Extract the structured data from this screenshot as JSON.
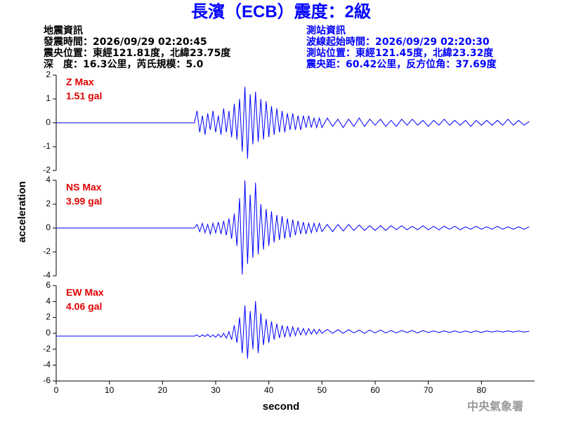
{
  "title": "長濱（ECB）震度：2級",
  "info_left": [
    "地震資訊",
    "發震時間：2026/09/29 02:20:45",
    "震央位置：東經121.81度，北緯23.75度",
    "深　度：16.3公里，芮氏規模：5.0"
  ],
  "info_right": [
    "測站資訊",
    "波線起始時間：2026/09/29 02:20:30",
    "測站位置：東經121.45度，北緯23.32度",
    "震央距：60.42公里，反方位角：37.69度"
  ],
  "xlabel": "second",
  "ylabel": "acceleration",
  "footer": "中央氣象署",
  "chart_data": [
    {
      "type": "line",
      "annotation": "Z Max",
      "max_label": "1.51 gal",
      "color": "#0000ff",
      "xlim": [
        0,
        90
      ],
      "ylim": [
        -2,
        2
      ],
      "yticks": [
        2,
        1,
        0,
        -1,
        -2
      ],
      "x": [
        0,
        26,
        26.5,
        27,
        27.5,
        28,
        28.5,
        29,
        29.5,
        30,
        30.5,
        31,
        31.5,
        32,
        32.5,
        33,
        33.5,
        34,
        34.5,
        35,
        35.5,
        36,
        36.5,
        37,
        37.5,
        38,
        38.5,
        39,
        39.5,
        40,
        40.5,
        41,
        41.5,
        42,
        42.5,
        43,
        43.5,
        44,
        44.5,
        45,
        45.5,
        46,
        46.5,
        47,
        47.5,
        48,
        48.5,
        49,
        49.5,
        50,
        51,
        52,
        53,
        54,
        55,
        56,
        57,
        58,
        59,
        60,
        61,
        62,
        63,
        64,
        65,
        66,
        67,
        68,
        69,
        70,
        71,
        72,
        73,
        74,
        75,
        76,
        77,
        78,
        79,
        80,
        81,
        82,
        83,
        84,
        85,
        86,
        87,
        88,
        89
      ],
      "values": [
        0,
        0,
        0.5,
        -0.4,
        0.3,
        -0.5,
        0.4,
        -0.3,
        0.5,
        -0.4,
        0.3,
        -0.5,
        0.6,
        -0.4,
        0.5,
        -0.6,
        0.8,
        -0.7,
        1.0,
        -1.2,
        1.51,
        -1.5,
        1.2,
        -0.9,
        1.3,
        -0.8,
        1.0,
        -0.7,
        0.9,
        -0.6,
        0.7,
        -0.5,
        0.6,
        -0.4,
        0.5,
        -0.4,
        0.4,
        -0.3,
        0.4,
        -0.3,
        0.3,
        -0.3,
        0.3,
        -0.2,
        0.3,
        -0.2,
        0.2,
        -0.2,
        0.2,
        -0.2,
        0.2,
        -0.15,
        0.15,
        -0.2,
        0.15,
        -0.15,
        0.2,
        -0.15,
        0.15,
        -0.1,
        0.15,
        -0.15,
        0.1,
        -0.15,
        0.15,
        -0.1,
        0.15,
        -0.1,
        0.1,
        -0.15,
        0.1,
        -0.1,
        0.15,
        -0.1,
        0.1,
        -0.1,
        0.1,
        -0.15,
        0.1,
        -0.1,
        0.1,
        -0.1,
        0.1,
        -0.1,
        0.15,
        -0.1,
        0.1,
        -0.1,
        0.05
      ]
    },
    {
      "type": "line",
      "annotation": "NS Max",
      "max_label": "3.99 gal",
      "color": "#0000ff",
      "xlim": [
        0,
        90
      ],
      "ylim": [
        -4,
        4
      ],
      "yticks": [
        4,
        2,
        0,
        -2,
        -4
      ],
      "x": [
        0,
        26,
        26.5,
        27,
        27.5,
        28,
        28.5,
        29,
        29.5,
        30,
        30.5,
        31,
        31.5,
        32,
        32.5,
        33,
        33.5,
        34,
        34.5,
        35,
        35.5,
        36,
        36.5,
        37,
        37.5,
        38,
        38.5,
        39,
        39.5,
        40,
        40.5,
        41,
        41.5,
        42,
        42.5,
        43,
        43.5,
        44,
        44.5,
        45,
        45.5,
        46,
        46.5,
        47,
        47.5,
        48,
        48.5,
        49,
        49.5,
        50,
        51,
        52,
        53,
        54,
        55,
        56,
        57,
        58,
        59,
        60,
        61,
        62,
        63,
        64,
        65,
        66,
        67,
        68,
        69,
        70,
        71,
        72,
        73,
        74,
        75,
        76,
        77,
        78,
        79,
        80,
        81,
        82,
        83,
        84,
        85,
        86,
        87,
        88,
        89
      ],
      "values": [
        0,
        0,
        0.3,
        -0.3,
        0.4,
        -0.4,
        0.3,
        -0.5,
        0.4,
        -0.4,
        0.5,
        -0.5,
        0.6,
        -0.6,
        0.8,
        -0.9,
        1.2,
        -1.5,
        2.5,
        -3.9,
        3.99,
        -3.0,
        2.8,
        -2.5,
        3.8,
        -2.2,
        2.0,
        -1.8,
        1.6,
        -1.5,
        1.4,
        -1.2,
        1.1,
        -1.0,
        1.0,
        -0.9,
        0.8,
        -0.8,
        0.7,
        -0.6,
        0.6,
        -0.5,
        0.5,
        -0.5,
        0.4,
        -0.4,
        0.4,
        -0.3,
        0.4,
        -0.3,
        0.3,
        -0.3,
        0.3,
        -0.25,
        0.3,
        -0.2,
        0.25,
        -0.2,
        0.2,
        -0.2,
        0.2,
        -0.2,
        0.2,
        -0.15,
        0.2,
        -0.15,
        0.15,
        -0.15,
        0.2,
        -0.15,
        0.15,
        -0.15,
        0.15,
        -0.1,
        0.15,
        -0.15,
        0.1,
        -0.1,
        0.15,
        -0.1,
        0.1,
        -0.1,
        0.15,
        -0.1,
        0.1,
        -0.1,
        0.1,
        -0.1,
        0.1
      ]
    },
    {
      "type": "line",
      "annotation": "EW Max",
      "max_label": "4.06 gal",
      "color": "#0000ff",
      "xlim": [
        0,
        90
      ],
      "ylim": [
        -6,
        6
      ],
      "yticks": [
        6,
        4,
        2,
        0,
        -2,
        -4,
        -6
      ],
      "xticks": [
        0,
        10,
        20,
        30,
        40,
        50,
        60,
        70,
        80
      ],
      "x": [
        0,
        26,
        26.5,
        27,
        27.5,
        28,
        28.5,
        29,
        29.5,
        30,
        30.5,
        31,
        31.5,
        32,
        32.5,
        33,
        33.5,
        34,
        34.5,
        35,
        35.5,
        36,
        36.5,
        37,
        37.5,
        38,
        38.5,
        39,
        39.5,
        40,
        40.5,
        41,
        41.5,
        42,
        42.5,
        43,
        43.5,
        44,
        44.5,
        45,
        45.5,
        46,
        46.5,
        47,
        47.5,
        48,
        48.5,
        49,
        49.5,
        50,
        51,
        52,
        53,
        54,
        55,
        56,
        57,
        58,
        59,
        60,
        61,
        62,
        63,
        64,
        65,
        66,
        67,
        68,
        69,
        70,
        71,
        72,
        73,
        74,
        75,
        76,
        77,
        78,
        79,
        80,
        81,
        82,
        83,
        84,
        85,
        86,
        87,
        88,
        89
      ],
      "values": [
        -0.35,
        -0.35,
        -0.2,
        -0.45,
        -0.2,
        -0.4,
        -0.15,
        -0.45,
        -0.2,
        -0.5,
        -0.1,
        -0.5,
        0,
        -0.6,
        0.2,
        -0.8,
        1.0,
        -1.2,
        2.0,
        -2.5,
        3.5,
        -3.2,
        2.8,
        -2.0,
        4.06,
        -2.5,
        2.5,
        -1.5,
        1.8,
        -1.2,
        1.5,
        -0.8,
        1.2,
        -0.6,
        1.0,
        -0.5,
        0.9,
        -0.4,
        0.8,
        -0.3,
        0.7,
        -0.2,
        0.6,
        -0.2,
        0.6,
        -0.1,
        0.5,
        -0.1,
        0.5,
        0,
        0.5,
        0,
        0.45,
        0,
        0.45,
        0.05,
        0.4,
        0,
        0.4,
        0.05,
        0.4,
        0.05,
        0.35,
        0.05,
        0.35,
        0.1,
        0.35,
        0.05,
        0.35,
        0.1,
        0.3,
        0.1,
        0.3,
        0.1,
        0.3,
        0.1,
        0.3,
        0.1,
        0.3,
        0.1,
        0.3,
        0.15,
        0.3,
        0.15,
        0.3,
        0.15,
        0.3,
        0.15,
        0.25
      ]
    }
  ]
}
